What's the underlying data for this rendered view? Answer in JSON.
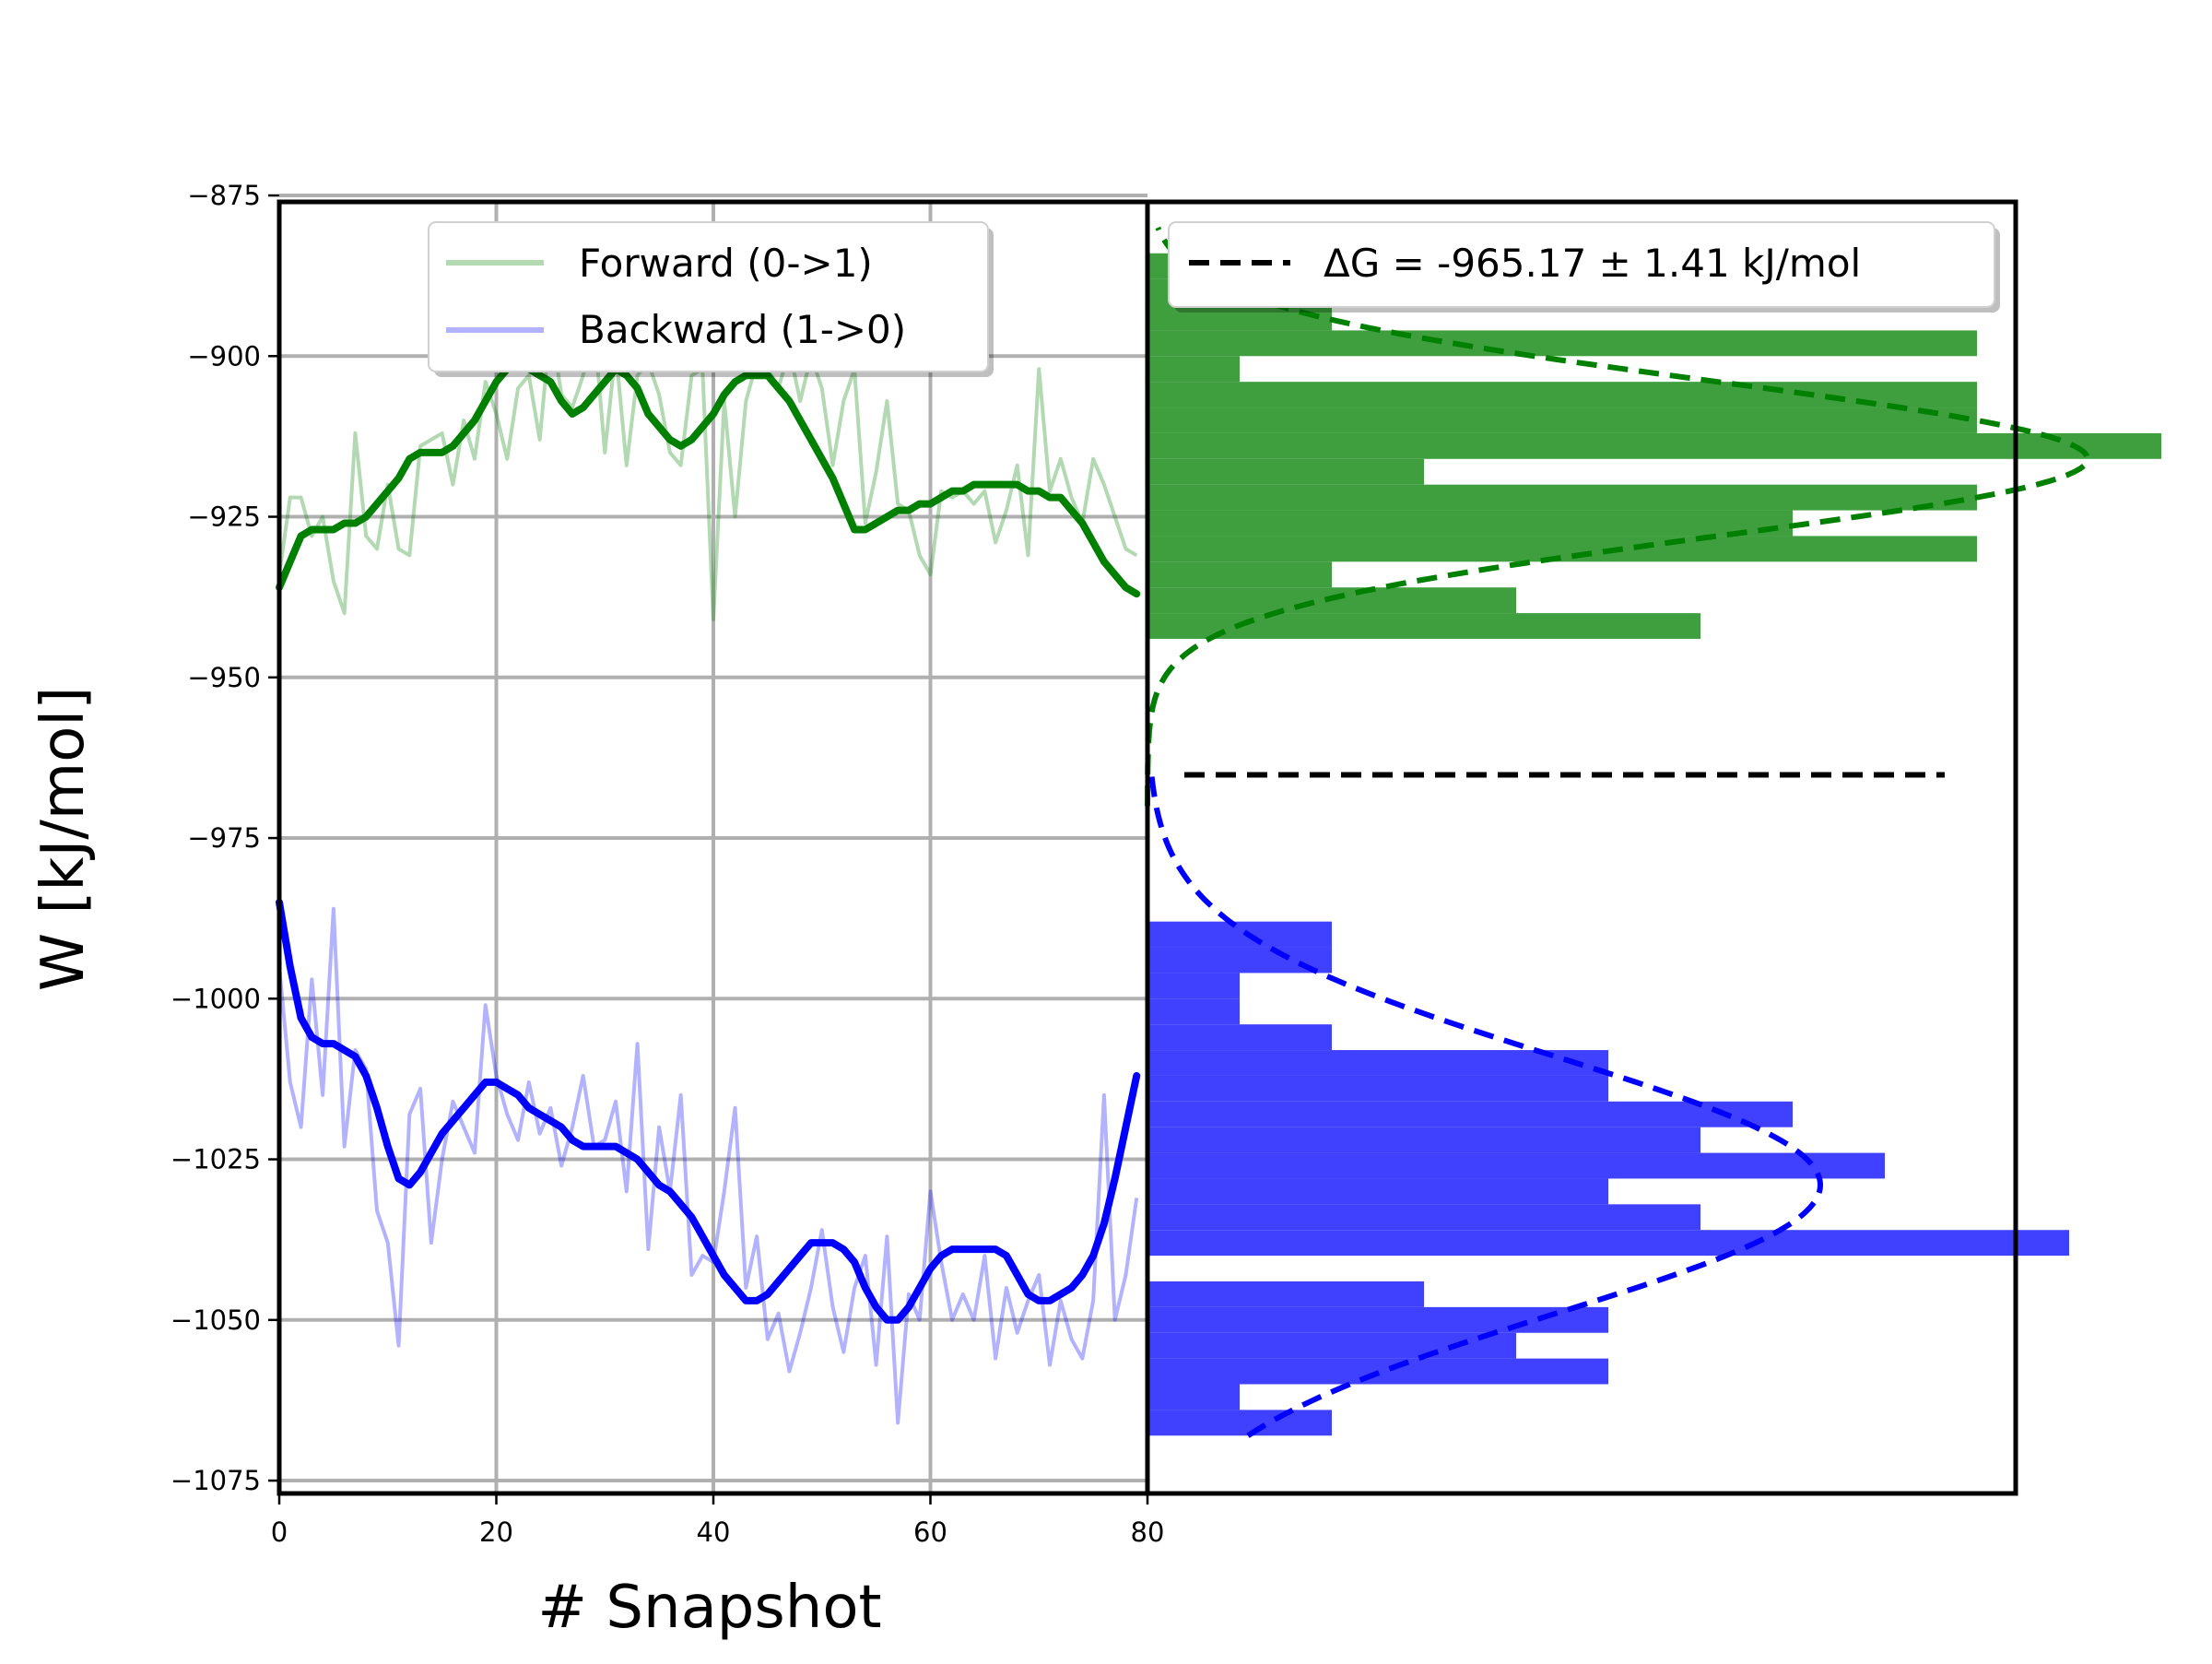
{
  "chart_data": [
    {
      "type": "line",
      "panel": "left",
      "xlabel": "# Snapshot",
      "ylabel": "W [kJ/mol]",
      "xlim": [
        0,
        80
      ],
      "ylim": [
        -1077,
        -876
      ],
      "xticks": [
        0,
        20,
        40,
        60,
        80
      ],
      "yticks": [
        -875,
        -900,
        -925,
        -950,
        -975,
        -1000,
        -1025,
        -1050,
        -1075
      ],
      "grid": true,
      "legend": {
        "placement": "top-center",
        "entries": [
          "Forward (0->1)",
          "Backward (1->0)"
        ]
      },
      "series": [
        {
          "name": "Forward (0->1)",
          "color": "#008000",
          "raw_x": [
            0,
            1,
            2,
            3,
            4,
            5,
            6,
            7,
            8,
            9,
            10,
            11,
            12,
            13,
            14,
            15,
            16,
            17,
            18,
            19,
            20,
            21,
            22,
            23,
            24,
            25,
            26,
            27,
            28,
            29,
            30,
            31,
            32,
            33,
            34,
            35,
            36,
            37,
            38,
            39,
            40,
            41,
            42,
            43,
            44,
            45,
            46,
            47,
            48,
            49,
            50,
            51,
            52,
            53,
            54,
            55,
            56,
            57,
            58,
            59,
            60,
            61,
            62,
            63,
            64,
            65,
            66,
            67,
            68,
            69,
            70,
            71,
            72,
            73,
            74,
            75,
            76,
            77,
            78,
            79
          ],
          "raw_y": [
            -934,
            -922,
            -922,
            -928,
            -925,
            -935,
            -940,
            -912,
            -928,
            -930,
            -920,
            -930,
            -931,
            -914,
            -913,
            -912,
            -920,
            -910,
            -916,
            -904,
            -909,
            -916,
            -905,
            -903,
            -913,
            -895,
            -906,
            -908,
            -903,
            -895,
            -915,
            -899,
            -917,
            -903,
            -901,
            -906,
            -915,
            -917,
            -903,
            -902,
            -941,
            -907,
            -925,
            -907,
            -901,
            -902,
            -905,
            -899,
            -907,
            -900,
            -905,
            -917,
            -907,
            -902,
            -926,
            -918,
            -907,
            -923,
            -924,
            -931,
            -934,
            -921,
            -922,
            -921,
            -923,
            -921,
            -929,
            -924,
            -917,
            -931,
            -902,
            -921,
            -916,
            -922,
            -926,
            -916,
            -920,
            -925,
            -930,
            -931
          ],
          "smooth_y": [
            -936,
            -932,
            -928,
            -927,
            -927,
            -927,
            -926,
            -926,
            -925,
            -923,
            -921,
            -919,
            -916,
            -915,
            -915,
            -915,
            -914,
            -912,
            -910,
            -907,
            -904,
            -902,
            -901,
            -902,
            -903,
            -904,
            -907,
            -909,
            -908,
            -906,
            -904,
            -902,
            -903,
            -905,
            -909,
            -911,
            -913,
            -914,
            -913,
            -911,
            -909,
            -906,
            -904,
            -903,
            -903,
            -903,
            -905,
            -907,
            -910,
            -913,
            -916,
            -919,
            -923,
            -927,
            -927,
            -926,
            -925,
            -924,
            -924,
            -923,
            -923,
            -922,
            -921,
            -921,
            -920,
            -920,
            -920,
            -920,
            -920,
            -921,
            -921,
            -922,
            -922,
            -924,
            -926,
            -929,
            -932,
            -934,
            -936,
            -937
          ]
        },
        {
          "name": "Backward (1->0)",
          "color": "#0000ff",
          "raw_x": [
            0,
            1,
            2,
            3,
            4,
            5,
            6,
            7,
            8,
            9,
            10,
            11,
            12,
            13,
            14,
            15,
            16,
            17,
            18,
            19,
            20,
            21,
            22,
            23,
            24,
            25,
            26,
            27,
            28,
            29,
            30,
            31,
            32,
            33,
            34,
            35,
            36,
            37,
            38,
            39,
            40,
            41,
            42,
            43,
            44,
            45,
            46,
            47,
            48,
            49,
            50,
            51,
            52,
            53,
            54,
            55,
            56,
            57,
            58,
            59,
            60,
            61,
            62,
            63,
            64,
            65,
            66,
            67,
            68,
            69,
            70,
            71,
            72,
            73,
            74,
            75,
            76,
            77,
            78,
            79
          ],
          "raw_y": [
            -995,
            -1013,
            -1020,
            -997,
            -1015,
            -986,
            -1023,
            -1008,
            -1011,
            -1033,
            -1038,
            -1054,
            -1018,
            -1014,
            -1038,
            -1025,
            -1016,
            -1020,
            -1024,
            -1001,
            -1012,
            -1018,
            -1022,
            -1013,
            -1021,
            -1017,
            -1026,
            -1020,
            -1012,
            -1023,
            -1022,
            -1016,
            -1030,
            -1007,
            -1039,
            -1020,
            -1030,
            -1015,
            -1043,
            -1040,
            -1041,
            -1030,
            -1017,
            -1045,
            -1037,
            -1053,
            -1049,
            -1058,
            -1052,
            -1045,
            -1036,
            -1048,
            -1055,
            -1045,
            -1040,
            -1057,
            -1037,
            -1066,
            -1046,
            -1050,
            -1030,
            -1041,
            -1050,
            -1046,
            -1050,
            -1040,
            -1056,
            -1045,
            -1052,
            -1047,
            -1043,
            -1057,
            -1047,
            -1053,
            -1056,
            -1047,
            -1015,
            -1050,
            -1043,
            -1031
          ],
          "smooth_y": [
            -985,
            -995,
            -1003,
            -1006,
            -1007,
            -1007,
            -1008,
            -1009,
            -1012,
            -1017,
            -1023,
            -1028,
            -1029,
            -1027,
            -1024,
            -1021,
            -1019,
            -1017,
            -1015,
            -1013,
            -1013,
            -1014,
            -1015,
            -1017,
            -1018,
            -1019,
            -1020,
            -1022,
            -1023,
            -1023,
            -1023,
            -1023,
            -1024,
            -1025,
            -1027,
            -1029,
            -1030,
            -1032,
            -1034,
            -1037,
            -1040,
            -1043,
            -1045,
            -1047,
            -1047,
            -1046,
            -1044,
            -1042,
            -1040,
            -1038,
            -1038,
            -1038,
            -1039,
            -1041,
            -1045,
            -1048,
            -1050,
            -1050,
            -1048,
            -1045,
            -1042,
            -1040,
            -1039,
            -1039,
            -1039,
            -1039,
            -1039,
            -1040,
            -1043,
            -1046,
            -1047,
            -1047,
            -1046,
            -1045,
            -1043,
            -1040,
            -1035,
            -1028,
            -1020,
            -1012
          ]
        }
      ]
    },
    {
      "type": "bar",
      "panel": "right",
      "orientation": "horizontal",
      "ylim": [
        -1077,
        -876
      ],
      "legend": {
        "placement": "top-right",
        "entries": [
          "ΔG = -965.17 ± 1.41 kJ/mol"
        ]
      },
      "delta_g": {
        "value": -965.17,
        "error": 1.41,
        "unit": "kJ/mol",
        "line_style": "dashed",
        "color": "#000000"
      },
      "histograms": [
        {
          "name": "Forward (0->1)",
          "color": "#3f9f3f",
          "bin_edges": [
            -944,
            -940,
            -936,
            -932,
            -928,
            -924,
            -920,
            -916,
            -912,
            -908,
            -904,
            -900,
            -896,
            -892,
            -888,
            -884
          ],
          "counts": [
            6,
            4,
            2,
            9,
            7,
            9,
            3,
            11,
            9,
            9,
            1,
            9,
            2,
            2,
            2
          ],
          "fit": {
            "mean": -916,
            "sigma": 12,
            "peak": 10.2
          }
        },
        {
          "name": "Backward (1->0)",
          "color": "#4040ff",
          "bin_edges": [
            -1068,
            -1064,
            -1060,
            -1056,
            -1052,
            -1048,
            -1044,
            -1040,
            -1036,
            -1032,
            -1028,
            -1024,
            -1020,
            -1016,
            -1012,
            -1008,
            -1004,
            -1000,
            -996,
            -992,
            -988
          ],
          "counts": [
            2,
            1,
            5,
            4,
            5,
            3,
            0,
            10,
            6,
            5,
            8,
            6,
            7,
            5,
            5,
            2,
            1,
            1,
            2,
            2
          ],
          "fit": {
            "mean": -1029,
            "sigma": 20,
            "peak": 7.3
          }
        }
      ]
    }
  ]
}
